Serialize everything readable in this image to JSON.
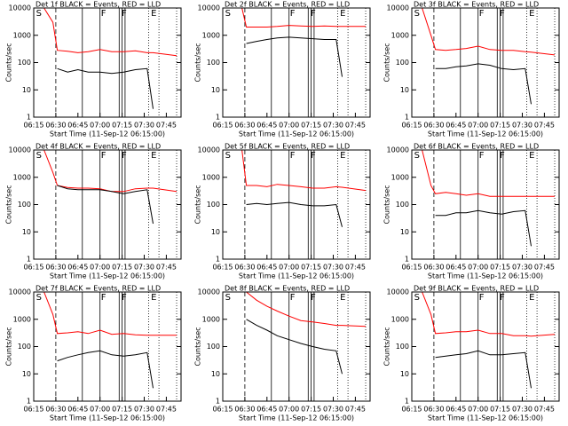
{
  "chart_data": [
    {
      "type": "line",
      "title": "Det 1f BLACK = Events, RED = LLD",
      "x_label": "Start Time (11-Sep-12 06:15:00)",
      "y_label": "Counts/sec",
      "log_y": true,
      "x": [
        "06:16",
        "06:22",
        "06:28",
        "06:31",
        "06:38",
        "06:45",
        "06:52",
        "07:00",
        "07:08",
        "07:16",
        "07:24",
        "07:32",
        "07:36",
        "07:52"
      ],
      "series": [
        {
          "color": "#ff0000",
          "values": [
            10000,
            10000,
            3000,
            280,
            260,
            230,
            250,
            300,
            250,
            250,
            270,
            230,
            230,
            180
          ]
        },
        {
          "color": "#000000",
          "values": [
            null,
            null,
            null,
            60,
            45,
            55,
            45,
            45,
            40,
            45,
            55,
            60,
            2,
            null
          ]
        }
      ],
      "xlim": [
        "06:15",
        "07:55"
      ],
      "xticks": [
        "06:15",
        "06:30",
        "06:45",
        "07:00",
        "07:15",
        "07:30",
        "07:45"
      ],
      "ylim": [
        1,
        10000
      ],
      "yticks": [
        1,
        10,
        100,
        1000,
        10000
      ],
      "dashed_lines": [
        "06:30"
      ],
      "solid_lines": [
        "06:48",
        "07:00",
        "07:13",
        "07:15",
        "07:17"
      ],
      "dotted_lines": [
        "07:33",
        "07:40",
        "07:52"
      ],
      "annotations": [
        {
          "x": "06:16",
          "label": "S"
        },
        {
          "x": "07:00",
          "label": "F"
        },
        {
          "x": "07:14",
          "label": "F"
        },
        {
          "x": "07:34",
          "label": "E"
        }
      ]
    },
    {
      "type": "line",
      "title": "Det 2f BLACK = Events, RED = LLD",
      "x_label": "Start Time (11-Sep-12 06:15:00)",
      "y_label": "Counts/sec",
      "log_y": true,
      "x": [
        "06:16",
        "06:22",
        "06:28",
        "06:31",
        "06:38",
        "06:45",
        "06:52",
        "07:00",
        "07:08",
        "07:16",
        "07:24",
        "07:32",
        "07:36",
        "07:52"
      ],
      "series": [
        {
          "color": "#ff0000",
          "values": [
            10000,
            10000,
            10000,
            2000,
            2000,
            2000,
            2100,
            2300,
            2200,
            2100,
            2200,
            2100,
            2100,
            2100
          ]
        },
        {
          "color": "#000000",
          "values": [
            null,
            null,
            null,
            500,
            600,
            700,
            800,
            850,
            800,
            750,
            700,
            700,
            30,
            null
          ]
        }
      ],
      "xlim": [
        "06:15",
        "07:55"
      ],
      "xticks": [
        "06:15",
        "06:30",
        "06:45",
        "07:00",
        "07:15",
        "07:30",
        "07:45"
      ],
      "ylim": [
        1,
        10000
      ],
      "yticks": [
        1,
        10,
        100,
        1000,
        10000
      ],
      "dashed_lines": [
        "06:30"
      ],
      "solid_lines": [
        "06:48",
        "07:00",
        "07:13",
        "07:15",
        "07:17"
      ],
      "dotted_lines": [
        "07:33",
        "07:40",
        "07:52"
      ],
      "annotations": [
        {
          "x": "06:16",
          "label": "S"
        },
        {
          "x": "07:00",
          "label": "F"
        },
        {
          "x": "07:14",
          "label": "F"
        },
        {
          "x": "07:34",
          "label": "E"
        }
      ]
    },
    {
      "type": "line",
      "title": "Det 3f BLACK = Events, RED = LLD",
      "x_label": "Start Time (11-Sep-12 06:15:00)",
      "y_label": "Counts/sec",
      "log_y": true,
      "x": [
        "06:16",
        "06:22",
        "06:28",
        "06:31",
        "06:38",
        "06:45",
        "06:52",
        "07:00",
        "07:08",
        "07:16",
        "07:24",
        "07:32",
        "07:36",
        "07:52"
      ],
      "series": [
        {
          "color": "#ff0000",
          "values": [
            10000,
            10000,
            1000,
            300,
            280,
            300,
            330,
            400,
            300,
            280,
            280,
            250,
            240,
            190
          ]
        },
        {
          "color": "#000000",
          "values": [
            null,
            null,
            null,
            60,
            60,
            70,
            75,
            90,
            80,
            60,
            55,
            60,
            3,
            null
          ]
        }
      ],
      "xlim": [
        "06:15",
        "07:55"
      ],
      "xticks": [
        "06:15",
        "06:30",
        "06:45",
        "07:00",
        "07:15",
        "07:30",
        "07:45"
      ],
      "ylim": [
        1,
        10000
      ],
      "yticks": [
        1,
        10,
        100,
        1000,
        10000
      ],
      "dashed_lines": [
        "06:30"
      ],
      "solid_lines": [
        "06:48",
        "07:00",
        "07:13",
        "07:15",
        "07:17"
      ],
      "dotted_lines": [
        "07:33",
        "07:40",
        "07:52"
      ],
      "annotations": [
        {
          "x": "06:16",
          "label": "S"
        },
        {
          "x": "07:00",
          "label": "F"
        },
        {
          "x": "07:14",
          "label": "F"
        },
        {
          "x": "07:34",
          "label": "E"
        }
      ]
    },
    {
      "type": "line",
      "title": "Det 4f BLACK = Events, RED = LLD",
      "x_label": "Start Time (11-Sep-12 06:15:00)",
      "y_label": "Counts/sec",
      "log_y": true,
      "x": [
        "06:16",
        "06:22",
        "06:28",
        "06:31",
        "06:38",
        "06:45",
        "06:52",
        "07:00",
        "07:08",
        "07:16",
        "07:24",
        "07:32",
        "07:36",
        "07:52"
      ],
      "series": [
        {
          "color": "#ff0000",
          "values": [
            10000,
            10000,
            1500,
            500,
            420,
            400,
            400,
            380,
            300,
            300,
            380,
            400,
            400,
            300
          ]
        },
        {
          "color": "#000000",
          "values": [
            null,
            null,
            null,
            500,
            380,
            350,
            350,
            350,
            300,
            250,
            300,
            350,
            20,
            null
          ]
        }
      ],
      "xlim": [
        "06:15",
        "07:55"
      ],
      "xticks": [
        "06:15",
        "06:30",
        "06:45",
        "07:00",
        "07:15",
        "07:30",
        "07:45"
      ],
      "ylim": [
        1,
        10000
      ],
      "yticks": [
        1,
        10,
        100,
        1000,
        10000
      ],
      "dashed_lines": [
        "06:30"
      ],
      "solid_lines": [
        "06:48",
        "07:00",
        "07:13",
        "07:15",
        "07:17"
      ],
      "dotted_lines": [
        "07:33",
        "07:40",
        "07:52"
      ],
      "annotations": [
        {
          "x": "06:16",
          "label": "S"
        },
        {
          "x": "07:00",
          "label": "F"
        },
        {
          "x": "07:14",
          "label": "F"
        },
        {
          "x": "07:34",
          "label": "E"
        }
      ]
    },
    {
      "type": "line",
      "title": "Det 5f BLACK = Events, RED = LLD",
      "x_label": "Start Time (11-Sep-12 06:15:00)",
      "y_label": "Counts/sec",
      "log_y": true,
      "x": [
        "06:16",
        "06:22",
        "06:28",
        "06:31",
        "06:38",
        "06:45",
        "06:52",
        "07:00",
        "07:08",
        "07:16",
        "07:24",
        "07:32",
        "07:36",
        "07:52"
      ],
      "series": [
        {
          "color": "#ff0000",
          "values": [
            10000,
            10000,
            10000,
            500,
            500,
            450,
            550,
            500,
            450,
            400,
            400,
            450,
            430,
            330
          ]
        },
        {
          "color": "#000000",
          "values": [
            null,
            null,
            null,
            100,
            110,
            100,
            110,
            120,
            100,
            90,
            90,
            100,
            15,
            null
          ]
        }
      ],
      "xlim": [
        "06:15",
        "07:55"
      ],
      "xticks": [
        "06:15",
        "06:30",
        "06:45",
        "07:00",
        "07:15",
        "07:30",
        "07:45"
      ],
      "ylim": [
        1,
        10000
      ],
      "yticks": [
        1,
        10,
        100,
        1000,
        10000
      ],
      "dashed_lines": [
        "06:30"
      ],
      "solid_lines": [
        "06:48",
        "07:00",
        "07:13",
        "07:15",
        "07:17"
      ],
      "dotted_lines": [
        "07:33",
        "07:40",
        "07:52"
      ],
      "annotations": [
        {
          "x": "06:16",
          "label": "S"
        },
        {
          "x": "07:00",
          "label": "F"
        },
        {
          "x": "07:14",
          "label": "F"
        },
        {
          "x": "07:34",
          "label": "E"
        }
      ]
    },
    {
      "type": "line",
      "title": "Det 6f BLACK = Events, RED = LLD",
      "x_label": "Start Time (11-Sep-12 06:15:00)",
      "y_label": "Counts/sec",
      "log_y": true,
      "x": [
        "06:16",
        "06:22",
        "06:28",
        "06:31",
        "06:38",
        "06:45",
        "06:52",
        "07:00",
        "07:08",
        "07:16",
        "07:24",
        "07:32",
        "07:36",
        "07:52"
      ],
      "series": [
        {
          "color": "#ff0000",
          "values": [
            10000,
            10000,
            500,
            250,
            280,
            250,
            220,
            250,
            200,
            200,
            200,
            200,
            200,
            200
          ]
        },
        {
          "color": "#000000",
          "values": [
            null,
            null,
            null,
            40,
            40,
            50,
            50,
            60,
            50,
            45,
            55,
            60,
            3,
            null
          ]
        }
      ],
      "xlim": [
        "06:15",
        "07:55"
      ],
      "xticks": [
        "06:15",
        "06:30",
        "06:45",
        "07:00",
        "07:15",
        "07:30",
        "07:45"
      ],
      "ylim": [
        1,
        10000
      ],
      "yticks": [
        1,
        10,
        100,
        1000,
        10000
      ],
      "dashed_lines": [
        "06:30"
      ],
      "solid_lines": [
        "06:48",
        "07:00",
        "07:13",
        "07:15",
        "07:17"
      ],
      "dotted_lines": [
        "07:33",
        "07:40",
        "07:52"
      ],
      "annotations": [
        {
          "x": "06:16",
          "label": "S"
        },
        {
          "x": "07:00",
          "label": "F"
        },
        {
          "x": "07:14",
          "label": "F"
        },
        {
          "x": "07:34",
          "label": "E"
        }
      ]
    },
    {
      "type": "line",
      "title": "Det 7f BLACK = Events, RED = LLD",
      "x_label": "Start Time (11-Sep-12 06:15:00)",
      "y_label": "Counts/sec",
      "log_y": true,
      "x": [
        "06:16",
        "06:22",
        "06:28",
        "06:31",
        "06:38",
        "06:45",
        "06:52",
        "07:00",
        "07:08",
        "07:16",
        "07:24",
        "07:32",
        "07:36",
        "07:52"
      ],
      "series": [
        {
          "color": "#ff0000",
          "values": [
            10000,
            10000,
            1500,
            300,
            320,
            350,
            300,
            400,
            280,
            300,
            270,
            260,
            260,
            260
          ]
        },
        {
          "color": "#000000",
          "values": [
            null,
            null,
            null,
            30,
            40,
            50,
            60,
            70,
            50,
            45,
            50,
            60,
            3,
            null
          ]
        }
      ],
      "xlim": [
        "06:15",
        "07:55"
      ],
      "xticks": [
        "06:15",
        "06:30",
        "06:45",
        "07:00",
        "07:15",
        "07:30",
        "07:45"
      ],
      "ylim": [
        1,
        10000
      ],
      "yticks": [
        1,
        10,
        100,
        1000,
        10000
      ],
      "dashed_lines": [
        "06:30"
      ],
      "solid_lines": [
        "06:48",
        "07:00",
        "07:13",
        "07:15",
        "07:17"
      ],
      "dotted_lines": [
        "07:33",
        "07:40",
        "07:52"
      ],
      "annotations": [
        {
          "x": "06:16",
          "label": "S"
        },
        {
          "x": "07:00",
          "label": "F"
        },
        {
          "x": "07:14",
          "label": "F"
        },
        {
          "x": "07:34",
          "label": "E"
        }
      ]
    },
    {
      "type": "line",
      "title": "Det 8f BLACK = Events, RED = LLD",
      "x_label": "Start Time (11-Sep-12 06:15:00)",
      "y_label": "Counts/sec",
      "log_y": true,
      "x": [
        "06:16",
        "06:22",
        "06:28",
        "06:31",
        "06:38",
        "06:45",
        "06:52",
        "07:00",
        "07:08",
        "07:16",
        "07:24",
        "07:32",
        "07:36",
        "07:52"
      ],
      "series": [
        {
          "color": "#ff0000",
          "values": [
            10000,
            10000,
            10000,
            10000,
            5000,
            3000,
            2000,
            1300,
            900,
            800,
            700,
            600,
            600,
            550
          ]
        },
        {
          "color": "#000000",
          "values": [
            null,
            null,
            null,
            1000,
            600,
            400,
            250,
            180,
            130,
            100,
            80,
            70,
            10,
            null
          ]
        }
      ],
      "xlim": [
        "06:15",
        "07:55"
      ],
      "xticks": [
        "06:15",
        "06:30",
        "06:45",
        "07:00",
        "07:15",
        "07:30",
        "07:45"
      ],
      "ylim": [
        1,
        10000
      ],
      "yticks": [
        1,
        10,
        100,
        1000,
        10000
      ],
      "dashed_lines": [
        "06:30"
      ],
      "solid_lines": [
        "06:48",
        "07:00",
        "07:13",
        "07:15",
        "07:17"
      ],
      "dotted_lines": [
        "07:33",
        "07:40",
        "07:52"
      ],
      "annotations": [
        {
          "x": "06:16",
          "label": "S"
        },
        {
          "x": "07:00",
          "label": "F"
        },
        {
          "x": "07:14",
          "label": "F"
        },
        {
          "x": "07:34",
          "label": "E"
        }
      ]
    },
    {
      "type": "line",
      "title": "Det 9f BLACK = Events, RED = LLD",
      "x_label": "Start Time (11-Sep-12 06:15:00)",
      "y_label": "Counts/sec",
      "log_y": true,
      "x": [
        "06:16",
        "06:22",
        "06:28",
        "06:31",
        "06:38",
        "06:45",
        "06:52",
        "07:00",
        "07:08",
        "07:16",
        "07:24",
        "07:32",
        "07:36",
        "07:52"
      ],
      "series": [
        {
          "color": "#ff0000",
          "values": [
            10000,
            10000,
            1500,
            300,
            320,
            350,
            350,
            400,
            300,
            300,
            250,
            250,
            240,
            280
          ]
        },
        {
          "color": "#000000",
          "values": [
            null,
            null,
            null,
            40,
            45,
            50,
            55,
            70,
            50,
            50,
            55,
            60,
            3,
            null
          ]
        }
      ],
      "xlim": [
        "06:15",
        "07:55"
      ],
      "xticks": [
        "06:15",
        "06:30",
        "06:45",
        "07:00",
        "07:15",
        "07:30",
        "07:45"
      ],
      "ylim": [
        1,
        10000
      ],
      "yticks": [
        1,
        10,
        100,
        1000,
        10000
      ],
      "dashed_lines": [
        "06:30"
      ],
      "solid_lines": [
        "06:48",
        "07:00",
        "07:13",
        "07:15",
        "07:17"
      ],
      "dotted_lines": [
        "07:33",
        "07:40",
        "07:52"
      ],
      "annotations": [
        {
          "x": "06:16",
          "label": "S"
        },
        {
          "x": "07:00",
          "label": "F"
        },
        {
          "x": "07:14",
          "label": "F"
        },
        {
          "x": "07:34",
          "label": "E"
        }
      ]
    }
  ]
}
